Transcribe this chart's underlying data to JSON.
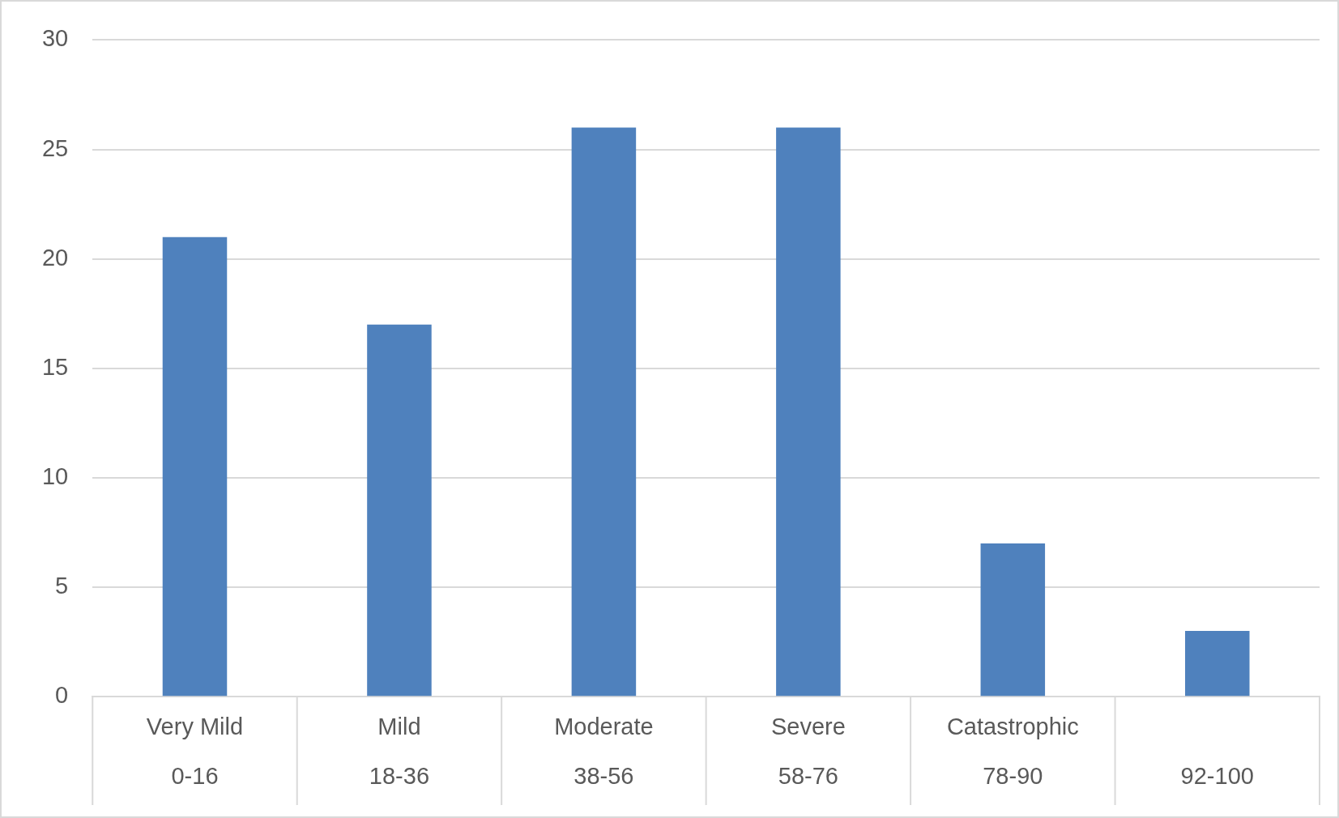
{
  "chart_data": {
    "type": "bar",
    "categories": [
      "Very Mild\n0-16",
      "Mild\n18-36",
      "Moderate\n38-56",
      "Severe\n58-76",
      "Catastrophic\n78-90",
      "92-100"
    ],
    "values": [
      21,
      17,
      26,
      26,
      7,
      3
    ],
    "color": "#4f81bd",
    "ylim": [
      0,
      30
    ],
    "yticks": [
      0,
      5,
      10,
      15,
      20,
      25,
      30
    ],
    "grid": "y"
  }
}
